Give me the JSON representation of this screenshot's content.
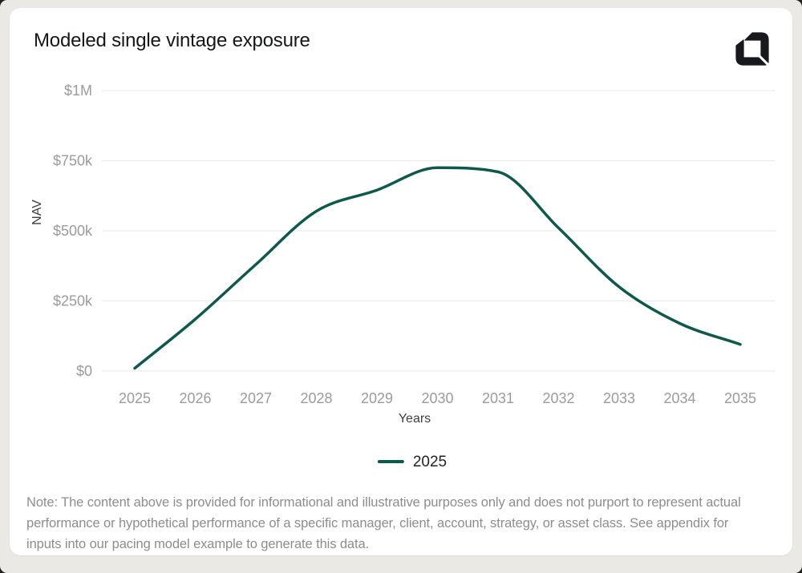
{
  "card": {
    "title": "Modeled single vintage exposure"
  },
  "icons": {
    "logo": "interlocking-corner-brackets-logo"
  },
  "chart_data": {
    "type": "line",
    "title": "Modeled single vintage exposure",
    "xlabel": "Years",
    "ylabel": "NAV",
    "categories": [
      "2025",
      "2026",
      "2027",
      "2028",
      "2029",
      "2030",
      "2031",
      "2032",
      "2033",
      "2034",
      "2035"
    ],
    "series": [
      {
        "name": "2025",
        "color": "#0e594c",
        "values": [
          10000,
          185000,
          380000,
          570000,
          645000,
          725000,
          710000,
          510000,
          300000,
          170000,
          95000
        ]
      }
    ],
    "ylim": [
      0,
      1000000
    ],
    "yticks": {
      "values": [
        0,
        250000,
        500000,
        750000,
        1000000
      ],
      "labels": [
        "$0",
        "$250k",
        "$500k",
        "$750k",
        "$1M"
      ]
    },
    "grid": "horizontal",
    "legend_position": "bottom",
    "interpolation": "monotone"
  },
  "note": {
    "lines": [
      "Note: The content above is provided for informational and illustrative purposes only and does not purport to represent actual",
      "performance or hypothetical performance of a specific manager, client, account, strategy, or asset class. See appendix for",
      "inputs into our pacing model example to generate this data."
    ]
  },
  "colors": {
    "frame": "#eae9e6",
    "corner": "#1e211f",
    "card": "#ffffff",
    "title": "#15171a",
    "tick": "#9b9b9b",
    "axis_title": "#3e3e3e",
    "note": "#8d8d8d",
    "line": "#0e594c",
    "grid": "#ececec",
    "legend_text": "#232323",
    "logo": "#17191c"
  }
}
